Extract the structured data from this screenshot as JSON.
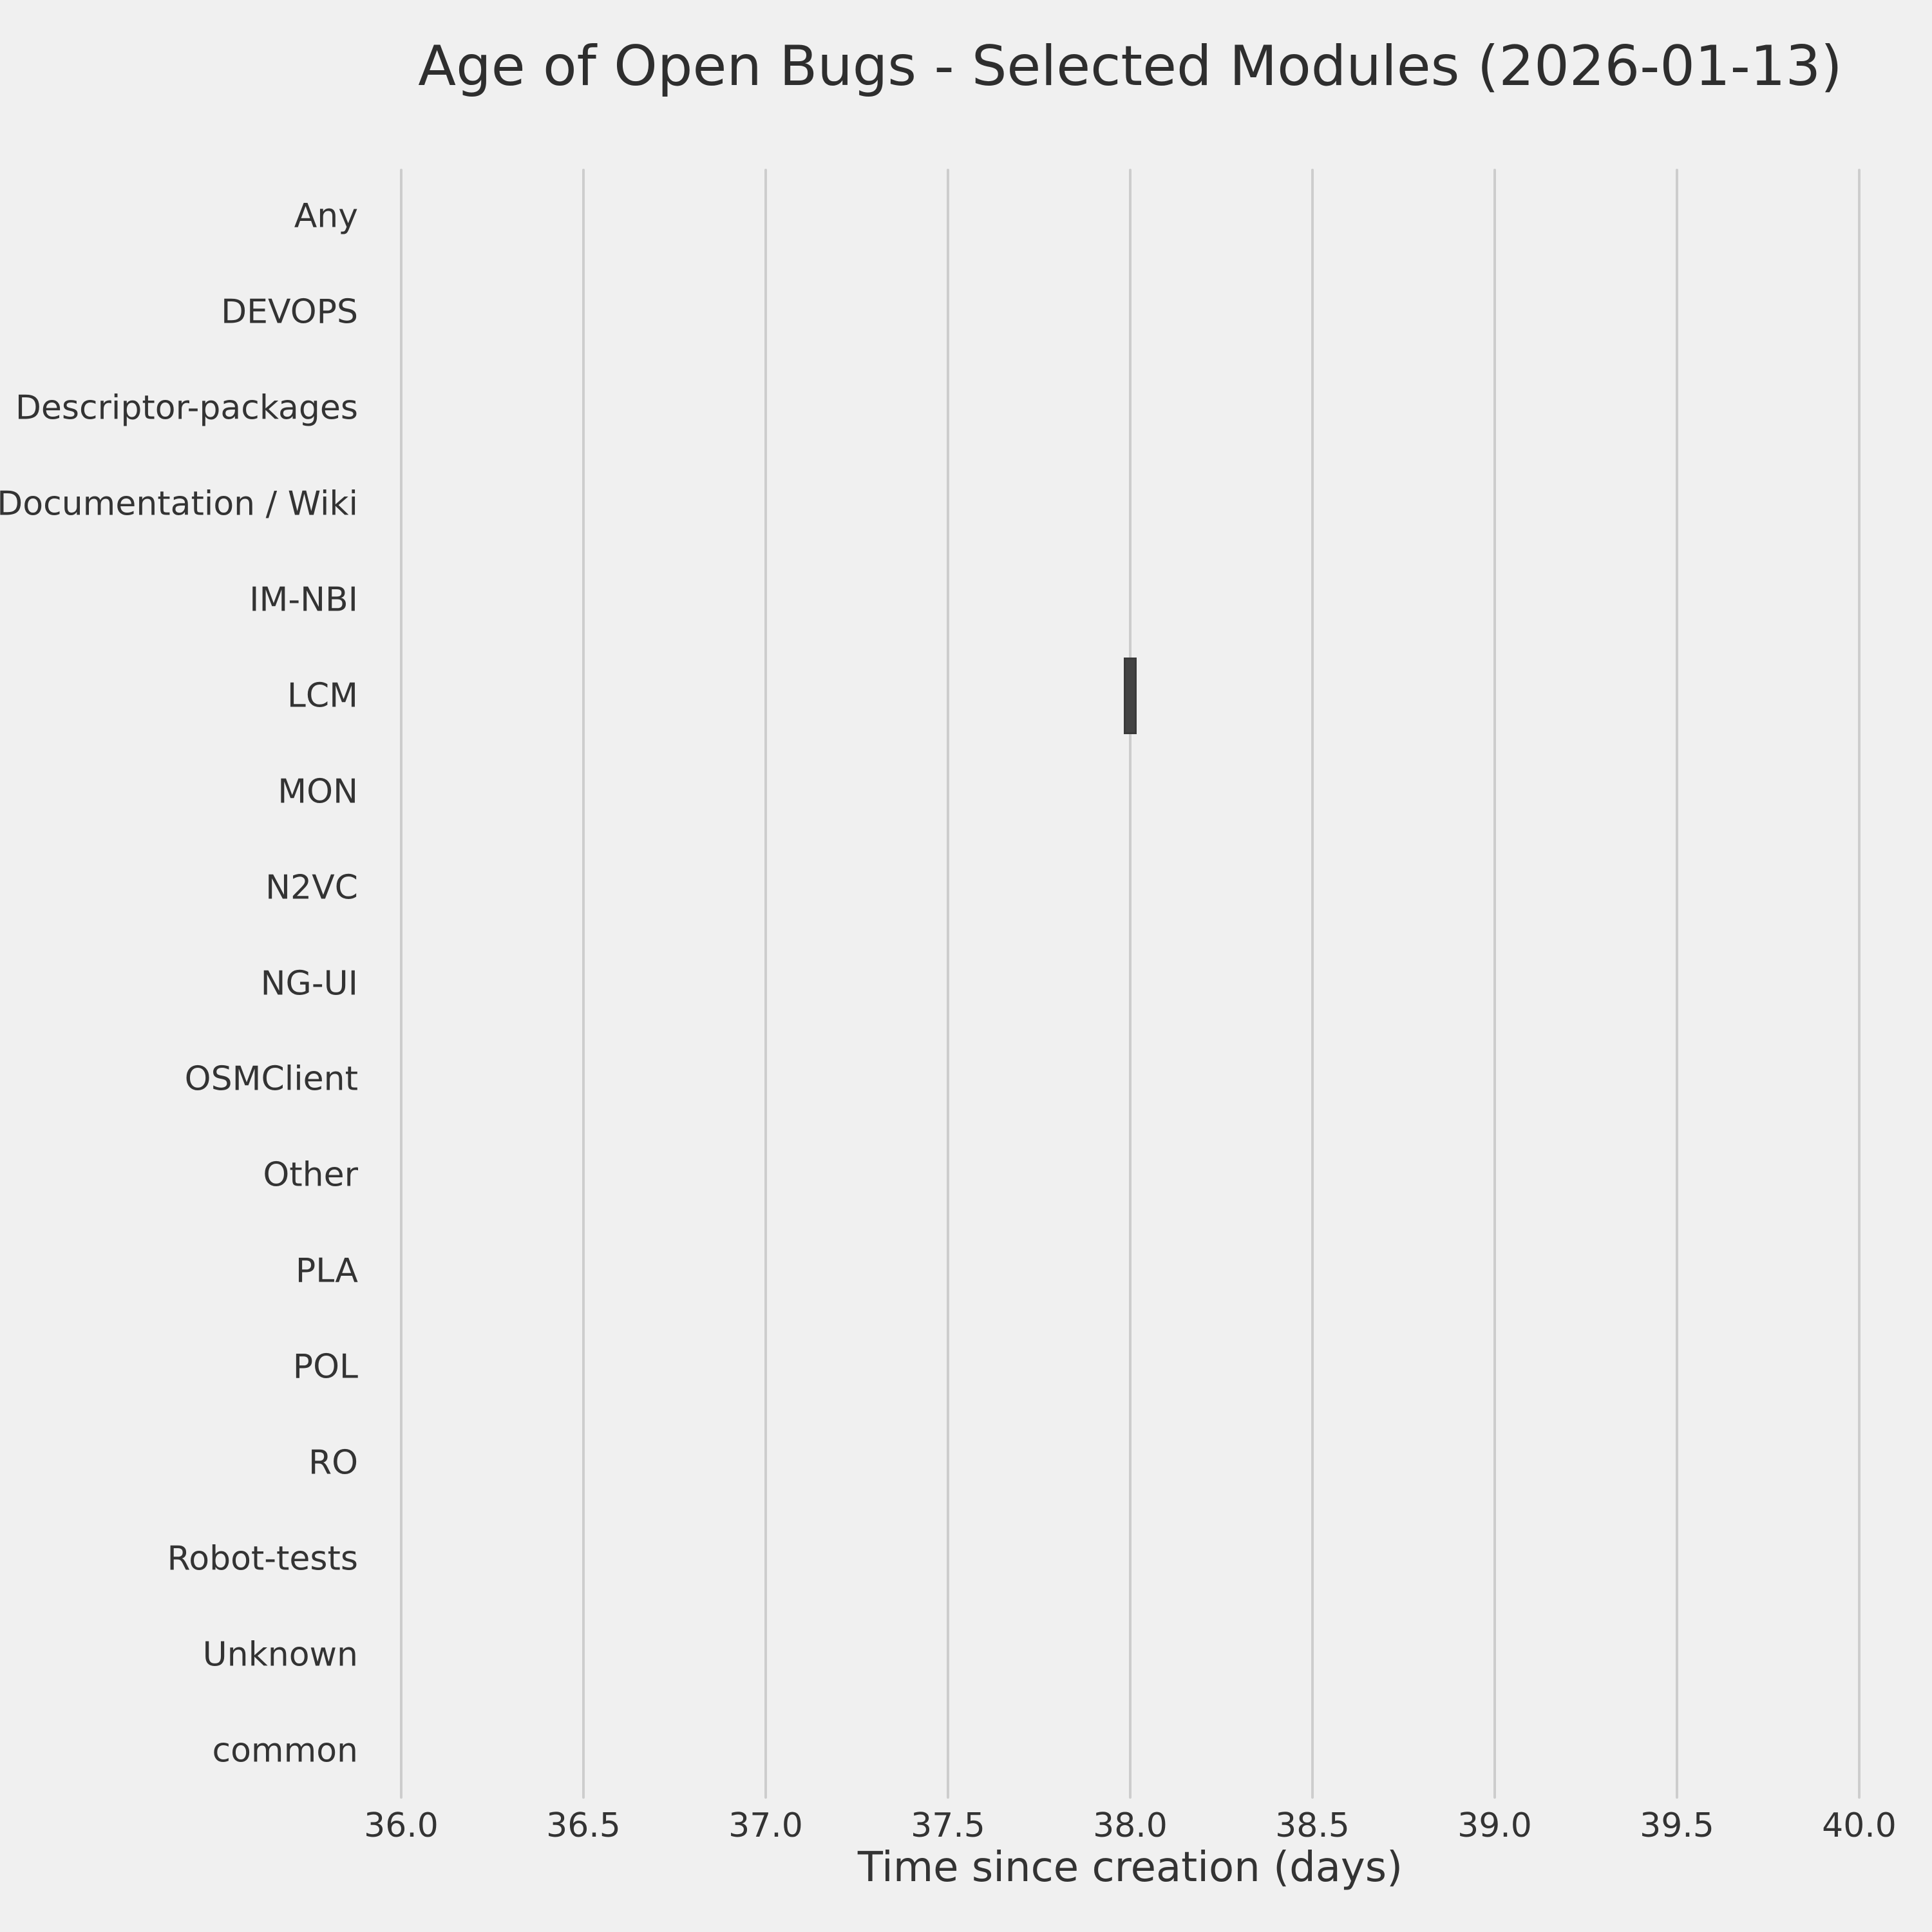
{
  "chart_data": {
    "type": "boxplot",
    "orientation": "horizontal",
    "title": "Age of Open Bugs - Selected Modules (2026-01-13)",
    "xlabel": "Time since creation (days)",
    "categories": [
      "Any",
      "DEVOPS",
      "Descriptor-packages",
      "Documentation / Wiki",
      "IM-NBI",
      "LCM",
      "MON",
      "N2VC",
      "NG-UI",
      "OSMClient",
      "Other",
      "PLA",
      "POL",
      "RO",
      "Robot-tests",
      "Unknown",
      "common"
    ],
    "x_ticks": [
      36.0,
      36.5,
      37.0,
      37.5,
      38.0,
      38.5,
      39.0,
      39.5,
      40.0
    ],
    "x_tick_labels": [
      "36.0",
      "36.5",
      "37.0",
      "37.5",
      "38.0",
      "38.5",
      "39.0",
      "39.5",
      "40.0"
    ],
    "xlim": [
      36.0,
      40.0
    ],
    "grid": "vertical",
    "legend": "none",
    "boxes": [
      {
        "category": "LCM",
        "whislo": 38.0,
        "q1": 38.0,
        "med": 38.0,
        "q3": 38.0,
        "whishi": 38.0
      }
    ],
    "colors": {
      "background": "#f0f0f0",
      "grid": "#cdcdcd",
      "text": "#333333",
      "box_fill": "#434343",
      "box_edge": "#3a3a3a"
    }
  }
}
